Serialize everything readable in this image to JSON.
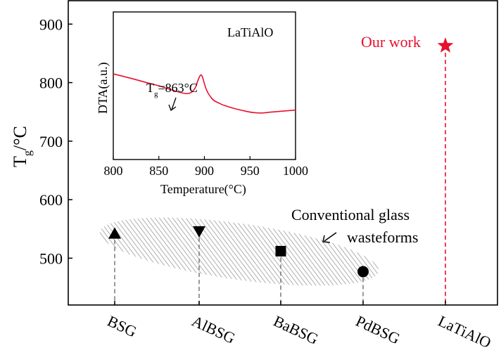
{
  "chart_data": [
    {
      "type": "scatter",
      "ylabel": "T",
      "ylabel_sub": "g",
      "ylabel_unit": "/°C",
      "categories": [
        "BSG",
        "AlBSG",
        "BaBSG",
        "PdBSG",
        "LaTiAlO"
      ],
      "ylim": [
        420,
        940
      ],
      "yticks": [
        500,
        600,
        700,
        800,
        900
      ],
      "series": [
        {
          "category": "BSG",
          "value": 542,
          "marker": "triangle-up",
          "color": "#000000"
        },
        {
          "category": "AlBSG",
          "value": 546,
          "marker": "triangle-down",
          "color": "#000000"
        },
        {
          "category": "BaBSG",
          "value": 512,
          "marker": "square",
          "color": "#000000"
        },
        {
          "category": "PdBSG",
          "value": 477,
          "marker": "circle",
          "color": "#000000"
        },
        {
          "category": "LaTiAlO",
          "value": 863,
          "marker": "star",
          "color": "#e8102f"
        }
      ],
      "annotations": {
        "our_work": "Our work",
        "conventional_line1": "Conventional glass",
        "conventional_line2": "wasteforms"
      },
      "grid": false,
      "drop_lines": "dashed"
    },
    {
      "type": "line",
      "inset": true,
      "title": "LaTiAlO",
      "xlabel": "Temperature(°C)",
      "ylabel": "DTA(a.u.)",
      "xlim": [
        800,
        1000
      ],
      "xticks": [
        800,
        850,
        900,
        950,
        1000
      ],
      "ylim": [
        0,
        1
      ],
      "series_color": "#e8102f",
      "x": [
        800,
        820,
        840,
        850,
        860,
        870,
        880,
        885,
        890,
        893,
        896,
        898,
        900,
        903,
        906,
        910,
        915,
        920,
        930,
        940,
        950,
        960,
        965,
        970,
        980,
        990,
        1000
      ],
      "y": [
        0.58,
        0.55,
        0.515,
        0.5,
        0.48,
        0.46,
        0.445,
        0.45,
        0.48,
        0.54,
        0.58,
        0.56,
        0.51,
        0.46,
        0.43,
        0.4,
        0.385,
        0.37,
        0.35,
        0.335,
        0.32,
        0.315,
        0.315,
        0.32,
        0.325,
        0.33,
        0.335
      ],
      "annotation": {
        "label_main": "T",
        "label_sub": "g",
        "label_rest": "=863°C",
        "x": 863
      }
    }
  ]
}
